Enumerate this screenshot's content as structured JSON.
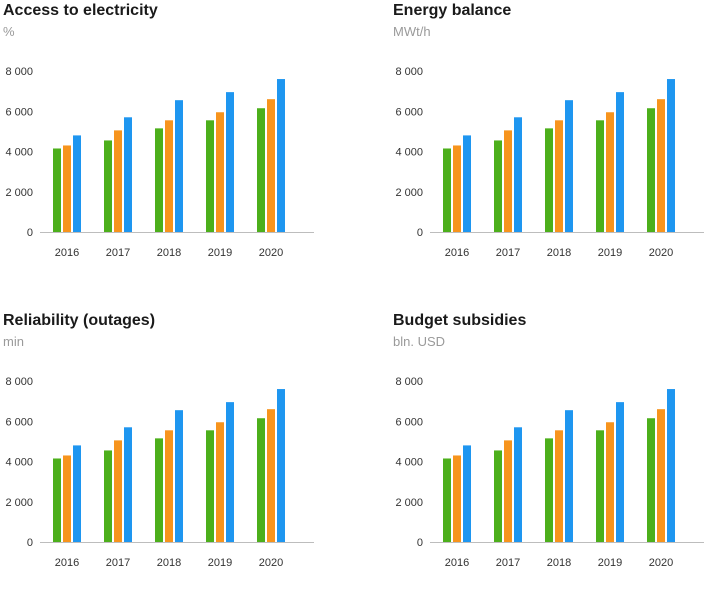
{
  "chart_data": [
    {
      "type": "bar",
      "title": "Access to electricity",
      "unit": "%",
      "categories": [
        "2016",
        "2017",
        "2018",
        "2019",
        "2020"
      ],
      "series": [
        {
          "values": [
            4150,
            4550,
            5150,
            5550,
            6150
          ]
        },
        {
          "values": [
            4300,
            5050,
            5550,
            5950,
            6600
          ]
        },
        {
          "values": [
            4800,
            5700,
            6550,
            6950,
            7600
          ]
        }
      ],
      "y_ticks": [
        0,
        2000,
        4000,
        6000,
        8000
      ],
      "y_tick_labels": [
        "0",
        "2 000",
        "4 000",
        "6 000",
        "8 000"
      ],
      "ylim": [
        0,
        8000
      ],
      "grid": false,
      "legend": "none"
    },
    {
      "type": "bar",
      "title": "Energy balance",
      "unit": "MWt/h",
      "categories": [
        "2016",
        "2017",
        "2018",
        "2019",
        "2020"
      ],
      "series": [
        {
          "values": [
            4150,
            4550,
            5150,
            5550,
            6150
          ]
        },
        {
          "values": [
            4300,
            5050,
            5550,
            5950,
            6600
          ]
        },
        {
          "values": [
            4800,
            5700,
            6550,
            6950,
            7600
          ]
        }
      ],
      "y_ticks": [
        0,
        2000,
        4000,
        6000,
        8000
      ],
      "y_tick_labels": [
        "0",
        "2 000",
        "4 000",
        "6 000",
        "8 000"
      ],
      "ylim": [
        0,
        8000
      ],
      "grid": false,
      "legend": "none"
    },
    {
      "type": "bar",
      "title": "Reliability (outages)",
      "unit": "min",
      "categories": [
        "2016",
        "2017",
        "2018",
        "2019",
        "2020"
      ],
      "series": [
        {
          "values": [
            4150,
            4550,
            5150,
            5550,
            6150
          ]
        },
        {
          "values": [
            4300,
            5050,
            5550,
            5950,
            6600
          ]
        },
        {
          "values": [
            4800,
            5700,
            6550,
            6950,
            7600
          ]
        }
      ],
      "y_ticks": [
        0,
        2000,
        4000,
        6000,
        8000
      ],
      "y_tick_labels": [
        "0",
        "2 000",
        "4 000",
        "6 000",
        "8 000"
      ],
      "ylim": [
        0,
        8000
      ],
      "grid": false,
      "legend": "none"
    },
    {
      "type": "bar",
      "title": "Budget subsidies",
      "unit": "bln. USD",
      "categories": [
        "2016",
        "2017",
        "2018",
        "2019",
        "2020"
      ],
      "series": [
        {
          "values": [
            4150,
            4550,
            5150,
            5550,
            6150
          ]
        },
        {
          "values": [
            4300,
            5050,
            5550,
            5950,
            6600
          ]
        },
        {
          "values": [
            4800,
            5700,
            6550,
            6950,
            7600
          ]
        }
      ],
      "y_ticks": [
        0,
        2000,
        4000,
        6000,
        8000
      ],
      "y_tick_labels": [
        "0",
        "2 000",
        "4 000",
        "6 000",
        "8 000"
      ],
      "ylim": [
        0,
        8000
      ],
      "grid": false,
      "legend": "none"
    }
  ],
  "colors": {
    "series": [
      "#4caf1b",
      "#f7941d",
      "#1e96f0"
    ],
    "axis": "#bdbdbd",
    "title": "#1a1a1a",
    "unit": "#9a9a9a"
  }
}
